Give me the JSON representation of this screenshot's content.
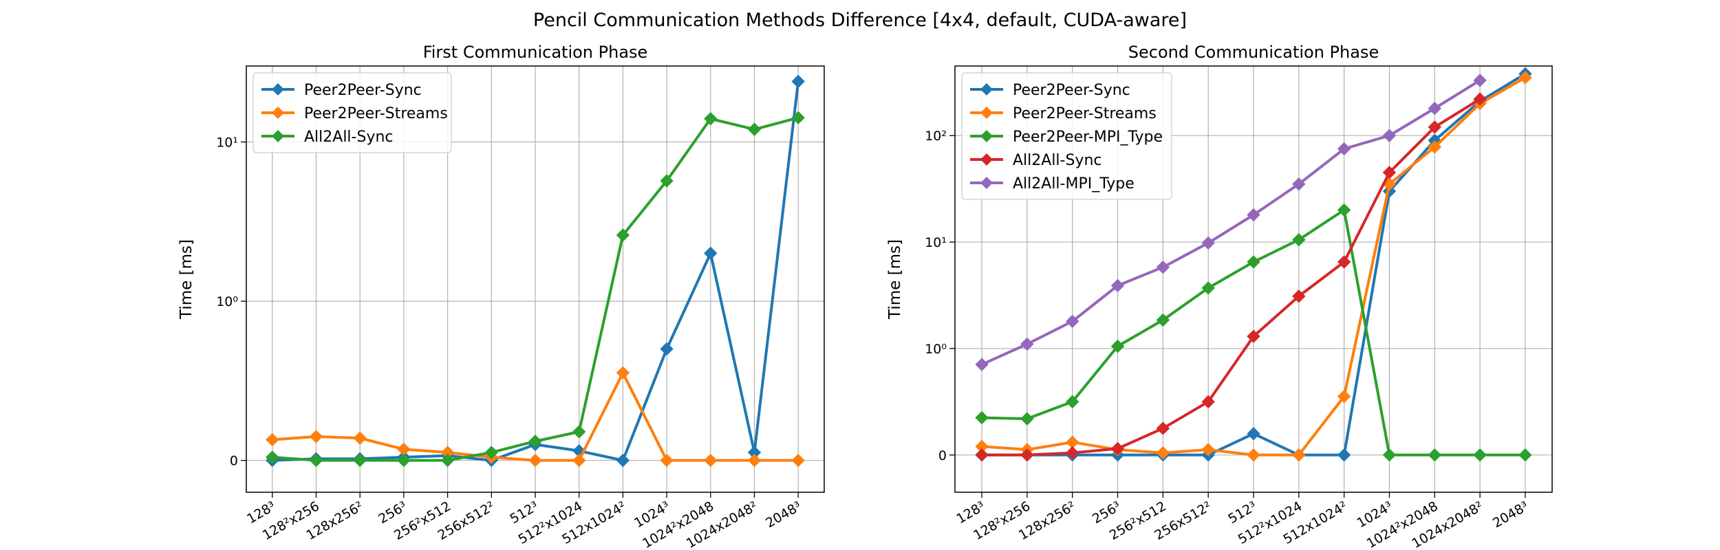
{
  "figure": {
    "suptitle": "Pencil Communication Methods Difference [4x4, default, CUDA-aware]"
  },
  "colors": {
    "blue": "#1f77b4",
    "orange": "#ff7f0e",
    "green": "#2ca02c",
    "red": "#d62728",
    "purple": "#9467bd",
    "grid": "#b0b0b0",
    "axis": "#000000"
  },
  "chart_data": [
    {
      "type": "line",
      "title": "First Communication Phase",
      "xlabel": "",
      "ylabel": "Time [ms]",
      "yscale": "symlog",
      "linthresh": 1,
      "ylim": [
        -0.2,
        30
      ],
      "yticks": [
        {
          "value": 0,
          "label": "0"
        },
        {
          "value": 1,
          "label": "10⁰"
        },
        {
          "value": 10,
          "label": "10¹"
        }
      ],
      "categories": [
        "128³",
        "128²x256",
        "128x256²",
        "256³",
        "256²x512",
        "256x512²",
        "512³",
        "512²x1024",
        "512x1024²",
        "1024³",
        "1024²x2048",
        "1024x2048²",
        "2048³"
      ],
      "grid": true,
      "legend": "top-left",
      "series": [
        {
          "name": "Peer2Peer-Sync",
          "color": "#1f77b4",
          "values": [
            0.0,
            0.01,
            0.01,
            0.02,
            0.03,
            0.0,
            0.1,
            0.06,
            0.0,
            0.7,
            2.0,
            0.05,
            24
          ]
        },
        {
          "name": "Peer2Peer-Streams",
          "color": "#ff7f0e",
          "values": [
            0.13,
            0.15,
            0.14,
            0.07,
            0.05,
            0.02,
            0.0,
            0.0,
            0.55,
            0.0,
            0.0,
            0.0,
            0.0
          ]
        },
        {
          "name": "All2All-Sync",
          "color": "#2ca02c",
          "values": [
            0.02,
            0.0,
            0.0,
            0.0,
            0.0,
            0.05,
            0.12,
            0.18,
            2.6,
            5.7,
            14,
            12,
            14.2
          ]
        }
      ]
    },
    {
      "type": "line",
      "title": "Second Communication Phase",
      "xlabel": "",
      "ylabel": "Time [ms]",
      "yscale": "symlog",
      "linthresh": 1,
      "ylim": [
        -0.35,
        450
      ],
      "yticks": [
        {
          "value": 0,
          "label": "0"
        },
        {
          "value": 1,
          "label": "10⁰"
        },
        {
          "value": 10,
          "label": "10¹"
        },
        {
          "value": 100,
          "label": "10²"
        }
      ],
      "categories": [
        "128³",
        "128²x256",
        "128x256²",
        "256³",
        "256²x512",
        "256x512²",
        "512³",
        "512²x1024",
        "512x1024²",
        "1024³",
        "1024²x2048",
        "1024x2048²",
        "2048³"
      ],
      "grid": true,
      "legend": "top-left",
      "series": [
        {
          "name": "Peer2Peer-Sync",
          "color": "#1f77b4",
          "values": [
            0.0,
            0.0,
            0.0,
            0.0,
            0.0,
            0.0,
            0.2,
            0.0,
            0.0,
            30,
            90,
            210,
            380
          ]
        },
        {
          "name": "Peer2Peer-Streams",
          "color": "#ff7f0e",
          "values": [
            0.08,
            0.05,
            0.12,
            0.05,
            0.02,
            0.05,
            0.0,
            0.0,
            0.55,
            35,
            78,
            200,
            350
          ]
        },
        {
          "name": "Peer2Peer-MPI_Type",
          "color": "#2ca02c",
          "values": [
            0.35,
            0.34,
            0.5,
            1.05,
            1.85,
            3.7,
            6.5,
            10.5,
            20,
            0.0,
            0.0,
            0.0,
            0.0
          ]
        },
        {
          "name": "All2All-Sync",
          "color": "#d62728",
          "values": [
            0.0,
            0.0,
            0.02,
            0.06,
            0.25,
            0.5,
            1.3,
            3.1,
            6.5,
            45,
            120,
            220,
            null
          ]
        },
        {
          "name": "All2All-MPI_Type",
          "color": "#9467bd",
          "values": [
            0.85,
            1.1,
            1.8,
            3.9,
            5.8,
            9.8,
            18,
            35,
            75,
            100,
            180,
            330,
            null
          ]
        }
      ]
    }
  ]
}
